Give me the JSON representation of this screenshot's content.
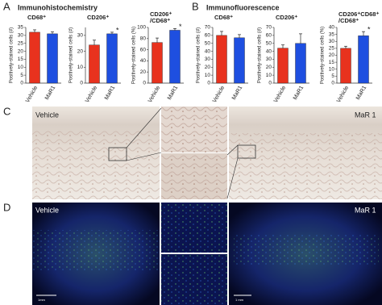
{
  "chart_data": [
    {
      "type": "bar",
      "title": [
        "CD68⁺"
      ],
      "y_label": "Positively-stained cells (#)",
      "categories": [
        "Vehicle",
        "MaR1"
      ],
      "colors": [
        "#e8321e",
        "#1e4fe0"
      ],
      "values": [
        32,
        31
      ],
      "errors": [
        1.5,
        1.2
      ],
      "ylim": [
        0,
        35
      ],
      "yticks": [
        0,
        5,
        10,
        15,
        20,
        25,
        30,
        35
      ]
    },
    {
      "type": "bar",
      "title": [
        "CD206⁺"
      ],
      "y_label": "Positively-stained cells (#)",
      "categories": [
        "Vehicle",
        "MaR1"
      ],
      "colors": [
        "#e8321e",
        "#1e4fe0"
      ],
      "values": [
        24,
        31
      ],
      "errors": [
        3,
        1
      ],
      "ylim": [
        0,
        35
      ],
      "yticks": [
        0,
        10,
        20,
        30
      ],
      "annotations": [
        {
          "text": "*",
          "category": "MaR1"
        }
      ]
    },
    {
      "type": "bar",
      "title": [
        "CD206⁺",
        "/CD68⁺"
      ],
      "y_label": "Positively-stained cells (%)",
      "categories": [
        "Vehicle",
        "MaR1"
      ],
      "colors": [
        "#e8321e",
        "#1e4fe0"
      ],
      "values": [
        73,
        95
      ],
      "errors": [
        8,
        3
      ],
      "ylim": [
        0,
        100
      ],
      "yticks": [
        0,
        20,
        40,
        60,
        80,
        100
      ],
      "annotations": [
        {
          "text": "*",
          "category": "MaR1"
        }
      ]
    },
    {
      "type": "bar",
      "title": [
        "CD68⁺"
      ],
      "y_label": "Positively-stained cells (#)",
      "categories": [
        "Vehicle",
        "MaR1"
      ],
      "colors": [
        "#e8321e",
        "#1e4fe0"
      ],
      "values": [
        60,
        57
      ],
      "errors": [
        5,
        4
      ],
      "ylim": [
        0,
        70
      ],
      "yticks": [
        0,
        10,
        20,
        30,
        40,
        50,
        60,
        70
      ]
    },
    {
      "type": "bar",
      "title": [
        "CD206⁺"
      ],
      "y_label": "Positively-stained cells (#)",
      "categories": [
        "Vehicle",
        "MaR1"
      ],
      "colors": [
        "#e8321e",
        "#1e4fe0"
      ],
      "values": [
        44,
        50
      ],
      "errors": [
        4,
        12
      ],
      "ylim": [
        0,
        70
      ],
      "yticks": [
        0,
        10,
        20,
        30,
        40,
        50,
        60,
        70
      ]
    },
    {
      "type": "bar",
      "title": [
        "CD206⁺CD68⁺",
        "/CD68⁺"
      ],
      "y_label": "Positively-stained cells (%)",
      "categories": [
        "Vehicle",
        "MaR1"
      ],
      "colors": [
        "#e8321e",
        "#1e4fe0"
      ],
      "values": [
        25,
        34
      ],
      "errors": [
        1.5,
        3
      ],
      "ylim": [
        0,
        40
      ],
      "yticks": [
        0,
        5,
        10,
        15,
        20,
        25,
        30,
        35,
        40
      ],
      "annotations": [
        {
          "text": "*",
          "category": "MaR1"
        }
      ]
    }
  ],
  "panels": {
    "A": {
      "letter": "A",
      "title": "Immunohistochemistry"
    },
    "B": {
      "letter": "B",
      "title": "Immunofluorescence"
    },
    "C": {
      "letter": "C",
      "left": "Vehicle",
      "right": "MaR 1"
    },
    "D": {
      "letter": "D",
      "left": "Vehicle",
      "right": "MaR 1",
      "scale_left": "1mm",
      "scale_right": "1 mm"
    }
  }
}
